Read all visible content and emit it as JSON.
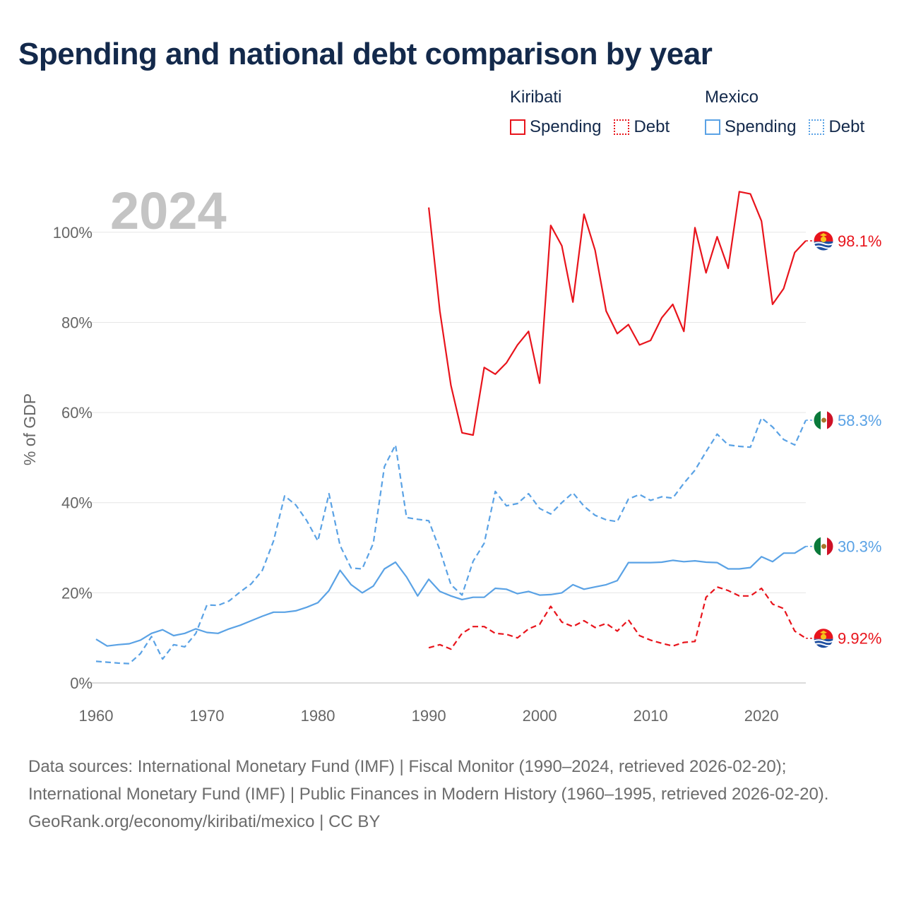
{
  "title": "Spending and national debt comparison by year",
  "legend": {
    "groups": [
      {
        "name": "Kiribati",
        "items": [
          "Spending",
          "Debt"
        ]
      },
      {
        "name": "Mexico",
        "items": [
          "Spending",
          "Debt"
        ]
      }
    ]
  },
  "colors": {
    "kiribati": "#e8141c",
    "mexico": "#5aa2e5",
    "title": "#13294b",
    "axis_text": "#666666",
    "year_watermark": "#c4c4c4"
  },
  "footer": {
    "source_text": "Data sources: International Monetary Fund (IMF) | Fiscal Monitor (1990–2024, retrieved 2026-02-20); International Monetary Fund (IMF) | Public Finances in Modern History (1960–1995, retrieved 2026-02-20).",
    "attribution": "GeoRank.org/economy/kiribati/mexico | CC BY"
  },
  "chart_data": {
    "type": "line",
    "year_label": "2024",
    "ylabel": "% of GDP",
    "xlim": [
      1960,
      2024
    ],
    "ylim": [
      0,
      110
    ],
    "xticks": [
      1960,
      1970,
      1980,
      1990,
      2000,
      2010,
      2020
    ],
    "yticks": [
      0,
      20,
      40,
      60,
      80,
      100
    ],
    "ytick_labels": [
      "0%",
      "20%",
      "40%",
      "60%",
      "80%",
      "100%"
    ],
    "grid": true,
    "series": [
      {
        "name": "Kiribati Spending",
        "country": "Kiribati",
        "metric": "Spending",
        "style": "solid",
        "color": "#e8141c",
        "end_label": "98.1%",
        "flag": "kiribati-flag-icon",
        "x": [
          1990,
          1991,
          1992,
          1993,
          1994,
          1995,
          1996,
          1997,
          1998,
          1999,
          2000,
          2001,
          2002,
          2003,
          2004,
          2005,
          2006,
          2007,
          2008,
          2009,
          2010,
          2011,
          2012,
          2013,
          2014,
          2015,
          2016,
          2017,
          2018,
          2019,
          2020,
          2021,
          2022,
          2023,
          2024
        ],
        "values": [
          105.5,
          82.5,
          66,
          55.5,
          55,
          70,
          68.5,
          71,
          75,
          78,
          66.5,
          101.5,
          97,
          84.5,
          104,
          96,
          82.5,
          77.5,
          79.5,
          75,
          76,
          81,
          84,
          78,
          101,
          91,
          99,
          92,
          109,
          108.5,
          102.5,
          84,
          87.5,
          95.5,
          98.1
        ]
      },
      {
        "name": "Kiribati Debt",
        "country": "Kiribati",
        "metric": "Debt",
        "style": "dashed",
        "color": "#e8141c",
        "end_label": "9.92%",
        "flag": "kiribati-flag-icon",
        "x": [
          1990,
          1991,
          1992,
          1993,
          1994,
          1995,
          1996,
          1997,
          1998,
          1999,
          2000,
          2001,
          2002,
          2003,
          2004,
          2005,
          2006,
          2007,
          2008,
          2009,
          2010,
          2011,
          2012,
          2013,
          2014,
          2015,
          2016,
          2017,
          2018,
          2019,
          2020,
          2021,
          2022,
          2023,
          2024
        ],
        "values": [
          7.8,
          8.5,
          7.5,
          11,
          12.5,
          12.5,
          11,
          10.8,
          10,
          12,
          13,
          17,
          13.5,
          12.5,
          13.8,
          12.3,
          13.2,
          11.5,
          14,
          10.5,
          9.5,
          8.8,
          8.2,
          9,
          9.2,
          19,
          21.3,
          20.5,
          19.3,
          19.3,
          21,
          17.5,
          16.5,
          11.5,
          9.92
        ]
      },
      {
        "name": "Mexico Spending",
        "country": "Mexico",
        "metric": "Spending",
        "style": "solid",
        "color": "#5aa2e5",
        "end_label": "30.3%",
        "flag": "mexico-flag-icon",
        "x": [
          1960,
          1961,
          1962,
          1963,
          1964,
          1965,
          1966,
          1967,
          1968,
          1969,
          1970,
          1971,
          1972,
          1973,
          1974,
          1975,
          1976,
          1977,
          1978,
          1979,
          1980,
          1981,
          1982,
          1983,
          1984,
          1985,
          1986,
          1987,
          1988,
          1989,
          1990,
          1991,
          1992,
          1993,
          1994,
          1995,
          1996,
          1997,
          1998,
          1999,
          2000,
          2001,
          2002,
          2003,
          2004,
          2005,
          2006,
          2007,
          2008,
          2009,
          2010,
          2011,
          2012,
          2013,
          2014,
          2015,
          2016,
          2017,
          2018,
          2019,
          2020,
          2021,
          2022,
          2023,
          2024
        ],
        "values": [
          9.7,
          8.2,
          8.5,
          8.7,
          9.5,
          11,
          11.8,
          10.5,
          11,
          12,
          11.2,
          11,
          12,
          12.8,
          13.8,
          14.8,
          15.7,
          15.7,
          16,
          16.8,
          17.8,
          20.5,
          25,
          21.8,
          20,
          21.5,
          25.3,
          26.8,
          23.5,
          19.3,
          23,
          20.3,
          19.3,
          18.5,
          19,
          19,
          21,
          20.8,
          19.8,
          20.3,
          19.5,
          19.6,
          20,
          21.8,
          20.8,
          21.3,
          21.8,
          22.7,
          26.7,
          26.7,
          26.7,
          26.8,
          27.2,
          26.9,
          27.1,
          26.8,
          26.7,
          25.3,
          25.3,
          25.6,
          28,
          26.9,
          28.8,
          28.8,
          30.3
        ]
      },
      {
        "name": "Mexico Debt",
        "country": "Mexico",
        "metric": "Debt",
        "style": "dashed",
        "color": "#5aa2e5",
        "end_label": "58.3%",
        "flag": "mexico-flag-icon",
        "x": [
          1960,
          1961,
          1962,
          1963,
          1964,
          1965,
          1966,
          1967,
          1968,
          1969,
          1970,
          1971,
          1972,
          1973,
          1974,
          1975,
          1976,
          1977,
          1978,
          1979,
          1980,
          1981,
          1982,
          1983,
          1984,
          1985,
          1986,
          1987,
          1988,
          1989,
          1990,
          1991,
          1992,
          1993,
          1994,
          1995,
          1996,
          1997,
          1998,
          1999,
          2000,
          2001,
          2002,
          2003,
          2004,
          2005,
          2006,
          2007,
          2008,
          2009,
          2010,
          2011,
          2012,
          2013,
          2014,
          2015,
          2016,
          2017,
          2018,
          2019,
          2020,
          2021,
          2022,
          2023,
          2024
        ],
        "values": [
          4.8,
          4.6,
          4.4,
          4.3,
          6.5,
          10.3,
          5.3,
          8.5,
          8,
          11,
          17.3,
          17.2,
          18.2,
          20.2,
          22,
          25,
          31.5,
          41.5,
          39.5,
          36,
          31.5,
          42,
          30.5,
          25.5,
          25.3,
          31,
          48,
          52.8,
          36.7,
          36.3,
          36,
          29.5,
          21.8,
          19.5,
          27,
          31,
          42.5,
          39.3,
          39.8,
          42,
          38.7,
          37.5,
          40,
          42.2,
          39.2,
          37.2,
          36.2,
          35.8,
          40.8,
          41.8,
          40.5,
          41.3,
          41,
          44.3,
          47.2,
          51.3,
          55.2,
          52.8,
          52.5,
          52.3,
          58.8,
          56.8,
          54,
          52.8,
          58.3
        ]
      }
    ]
  }
}
